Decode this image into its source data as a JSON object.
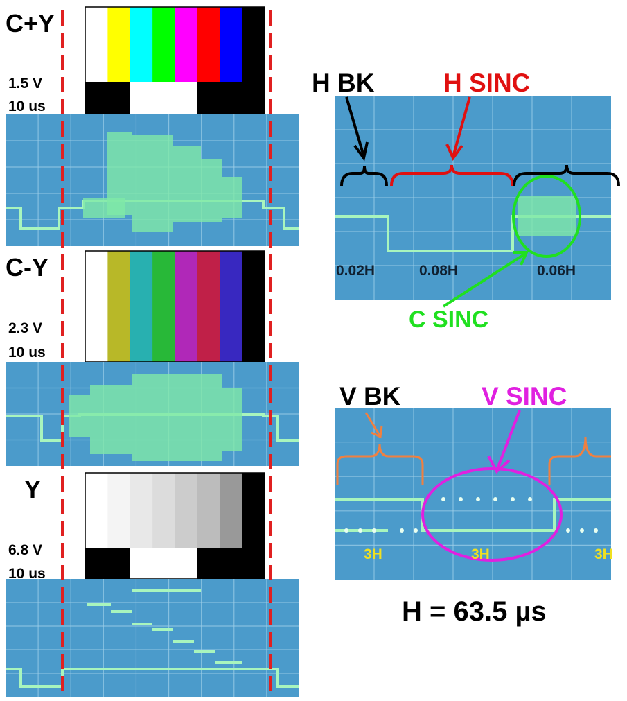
{
  "panels": [
    {
      "label": "C+Y",
      "volts": "1.5 V",
      "time": "10 us"
    },
    {
      "label": "C-Y",
      "volts": "2.3 V",
      "time": "10 us"
    },
    {
      "label": "Y",
      "volts": "6.8 V",
      "time": "10 us"
    }
  ],
  "h_sync": {
    "h_bk": "H BK",
    "h_sinc": "H SINC",
    "c_sinc": "C SINC",
    "widths": [
      "0.02H",
      "0.08H",
      "0.06H"
    ]
  },
  "v_sync": {
    "v_bk": "V BK",
    "v_sinc": "V SINC",
    "widths": [
      "3H",
      "3H",
      "3H"
    ]
  },
  "h_definition": "H = 63.5 µs"
}
